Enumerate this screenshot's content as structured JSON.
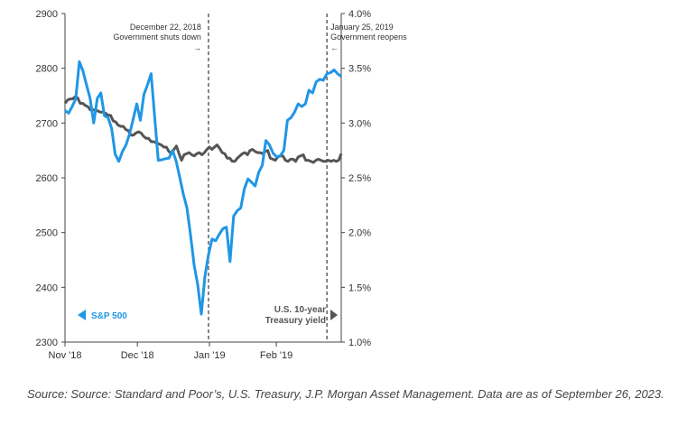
{
  "chart_data": {
    "type": "line",
    "title": "",
    "x_tick_labels": [
      "Nov '18",
      "Dec '18",
      "Jan '19",
      "Feb '19"
    ],
    "y_left": {
      "ticks": [
        "2300",
        "2400",
        "2500",
        "2600",
        "2700",
        "2800",
        "2900"
      ],
      "range": [
        2300,
        2900
      ]
    },
    "y_right": {
      "ticks": [
        "1.0%",
        "1.5%",
        "2.0%",
        "2.5%",
        "3.0%",
        "3.5%",
        "4.0%"
      ],
      "range": [
        1.0,
        4.0
      ]
    },
    "grid": false,
    "events": [
      {
        "date": "December 22, 2018",
        "text": "Government shuts down",
        "arrow": "→",
        "x_index": 40
      },
      {
        "date": "January 25, 2019",
        "text": "Government reopens",
        "arrow": "←",
        "x_index": 73
      }
    ],
    "series": [
      {
        "name": "S&P 500",
        "axis": "left",
        "color": "#1f96e6",
        "values": [
          2723,
          2718,
          2730,
          2744,
          2812,
          2795,
          2770,
          2745,
          2700,
          2745,
          2755,
          2713,
          2710,
          2690,
          2643,
          2630,
          2648,
          2660,
          2680,
          2707,
          2735,
          2705,
          2752,
          2770,
          2790,
          2710,
          2632,
          2633,
          2635,
          2636,
          2650,
          2630,
          2600,
          2570,
          2545,
          2495,
          2440,
          2405,
          2351,
          2420,
          2460,
          2488,
          2485,
          2497,
          2507,
          2510,
          2447,
          2530,
          2540,
          2545,
          2580,
          2598,
          2592,
          2585,
          2610,
          2623,
          2668,
          2660,
          2645,
          2638,
          2640,
          2650,
          2705,
          2710,
          2720,
          2735,
          2730,
          2735,
          2760,
          2755,
          2775,
          2780,
          2778,
          2790,
          2792,
          2797,
          2790,
          2785
        ]
      },
      {
        "name": "U.S. 10-year Treasury yield",
        "axis": "right",
        "color": "#555555",
        "values": [
          3.18,
          3.21,
          3.22,
          3.22,
          3.24,
          3.23,
          3.18,
          3.18,
          3.16,
          3.15,
          3.12,
          3.12,
          3.12,
          3.11,
          3.1,
          3.1,
          3.09,
          3.07,
          3.07,
          3.02,
          3.01,
          2.98,
          2.97,
          2.97,
          2.94,
          2.93,
          2.89,
          2.89,
          2.91,
          2.92,
          2.91,
          2.88,
          2.86,
          2.86,
          2.83,
          2.83,
          2.82,
          2.81,
          2.8,
          2.78,
          2.78,
          2.74,
          2.72,
          2.76,
          2.79,
          2.72,
          2.66,
          2.71,
          2.72,
          2.73,
          2.71,
          2.7,
          2.72,
          2.73,
          2.71,
          2.73,
          2.76,
          2.78,
          2.76,
          2.78,
          2.8,
          2.77,
          2.73,
          2.72,
          2.68,
          2.68,
          2.65,
          2.65,
          2.68,
          2.7,
          2.72,
          2.73,
          2.71,
          2.75,
          2.76,
          2.74,
          2.73,
          2.73,
          2.72,
          2.74,
          2.75,
          2.68,
          2.67,
          2.66,
          2.69,
          2.7,
          2.7,
          2.66,
          2.65,
          2.67,
          2.67,
          2.65,
          2.69,
          2.7,
          2.71,
          2.66,
          2.66,
          2.65,
          2.64,
          2.66,
          2.67,
          2.66,
          2.65,
          2.65,
          2.66,
          2.65,
          2.66,
          2.65,
          2.66,
          2.72
        ]
      }
    ],
    "series_labels": {
      "sp500": "S&P 500",
      "yield_line1": "U.S. 10-year",
      "yield_line2": "Treasury yield"
    }
  },
  "source_note": "Source: Source: Standard and Poor’s, U.S. Treasury, J.P. Morgan Asset Management. Data are as of September 26, 2023."
}
